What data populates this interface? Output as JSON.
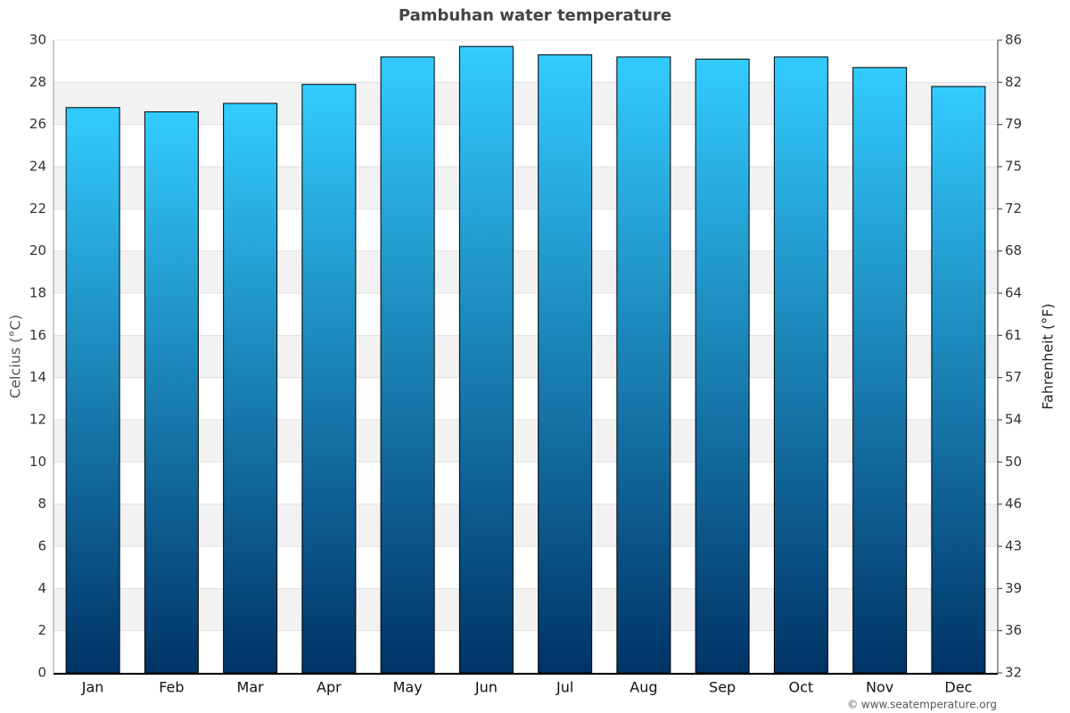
{
  "chart_data": {
    "type": "bar",
    "title": "Pambuhan water temperature",
    "y_label": "Celcius (°C)",
    "y2_label": "Fahrenheit (°F)",
    "credit": "© www.seatemperature.org",
    "categories": [
      "Jan",
      "Feb",
      "Mar",
      "Apr",
      "May",
      "Jun",
      "Jul",
      "Aug",
      "Sep",
      "Oct",
      "Nov",
      "Dec"
    ],
    "values": [
      26.8,
      26.6,
      27.0,
      27.9,
      29.2,
      29.7,
      29.3,
      29.2,
      29.1,
      29.2,
      28.7,
      27.8
    ],
    "color": [
      "#33ccff",
      "#003366"
    ],
    "ylim": [
      0,
      30
    ],
    "yticks": [
      0,
      2,
      4,
      6,
      8,
      10,
      12,
      14,
      16,
      18,
      20,
      22,
      24,
      26,
      28,
      30
    ],
    "y2lim": [
      32,
      86
    ],
    "y2ticks": [
      32,
      {
        "value": 35.6,
        "label": "36"
      },
      {
        "value": 39.2,
        "label": "39"
      },
      {
        "value": 42.8,
        "label": "43"
      },
      {
        "value": 46.4,
        "label": "46"
      },
      50,
      {
        "value": 53.6,
        "label": "54"
      },
      {
        "value": 57.2,
        "label": "57"
      },
      {
        "value": 60.8,
        "label": "61"
      },
      {
        "value": 64.4,
        "label": "64"
      },
      68,
      {
        "value": 71.6,
        "label": "72"
      },
      {
        "value": 75.2,
        "label": "75"
      },
      {
        "value": 78.8,
        "label": "79"
      },
      {
        "value": 82.4,
        "label": "82"
      },
      86
    ],
    "grid": true
  }
}
